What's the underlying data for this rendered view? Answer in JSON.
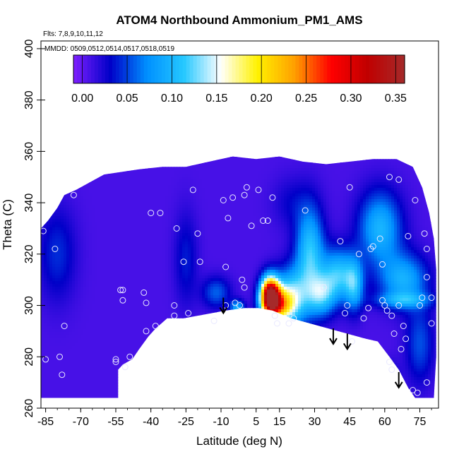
{
  "chart_data": {
    "type": "heatmap",
    "title": "ATOM4 Northbound Ammonium_PM1_AMS",
    "flights_note": "Flts: 7,8,9,10,11,12",
    "dates_note": "MMDD: 0509,0512,0514,0517,0518,0519",
    "xlabel": "Latitude (deg N)",
    "ylabel": "Theta (C)",
    "xlim": [
      -87,
      83
    ],
    "ylim": [
      260,
      403
    ],
    "x_ticks": [
      -85,
      -70,
      -55,
      -40,
      -25,
      -10,
      5,
      15,
      30,
      45,
      60,
      75
    ],
    "y_ticks": [
      260,
      280,
      300,
      320,
      340,
      360,
      380,
      400
    ],
    "colorbar": {
      "range": [
        -0.01,
        0.36
      ],
      "ticks": [
        0.0,
        0.05,
        0.1,
        0.15,
        0.2,
        0.25,
        0.3,
        0.35
      ],
      "tick_labels": [
        "0.00",
        "0.05",
        "0.10",
        "0.15",
        "0.20",
        "0.25",
        "0.30",
        "0.35"
      ],
      "colors": [
        "#7f1fff",
        "#0000c8",
        "#0090ff",
        "#25c8ff",
        "#ffffff",
        "#fff200",
        "#ffa000",
        "#ff0000",
        "#c00000",
        "#a52a2a"
      ]
    },
    "arrows": [
      {
        "lat": -9,
        "theta": 297
      },
      {
        "lat": 38,
        "theta": 285
      },
      {
        "lat": 44,
        "theta": 283
      },
      {
        "lat": 66,
        "theta": 268
      }
    ],
    "observations": [
      [
        -86,
        329
      ],
      [
        -85,
        279
      ],
      [
        -81,
        322
      ],
      [
        -79,
        280
      ],
      [
        -78,
        273
      ],
      [
        -77,
        292
      ],
      [
        -73,
        343
      ],
      [
        -55,
        279
      ],
      [
        -55,
        278
      ],
      [
        -53,
        306
      ],
      [
        -52,
        302
      ],
      [
        -52,
        306
      ],
      [
        -51,
        276
      ],
      [
        -49,
        280
      ],
      [
        -43,
        305
      ],
      [
        -42,
        301
      ],
      [
        -42,
        290
      ],
      [
        -40,
        336
      ],
      [
        -38,
        292
      ],
      [
        -36,
        336
      ],
      [
        -30,
        300
      ],
      [
        -30,
        296
      ],
      [
        -29,
        330
      ],
      [
        -26,
        317
      ],
      [
        -24,
        297
      ],
      [
        -22,
        345
      ],
      [
        -20,
        328
      ],
      [
        -19,
        317
      ],
      [
        -13,
        294
      ],
      [
        -9,
        341
      ],
      [
        -7,
        334
      ],
      [
        -8,
        315
      ],
      [
        -8,
        300
      ],
      [
        -5,
        342
      ],
      [
        -4,
        301
      ],
      [
        -2,
        300
      ],
      [
        -1,
        310
      ],
      [
        0,
        343
      ],
      [
        0,
        307
      ],
      [
        1,
        346
      ],
      [
        3,
        331
      ],
      [
        6,
        345
      ],
      [
        8,
        333
      ],
      [
        10,
        333
      ],
      [
        12,
        342
      ],
      [
        13,
        296
      ],
      [
        14,
        293
      ],
      [
        19,
        293
      ],
      [
        21,
        295
      ],
      [
        26,
        337
      ],
      [
        34,
        307
      ],
      [
        41,
        325
      ],
      [
        43,
        297
      ],
      [
        44,
        300
      ],
      [
        45,
        346
      ],
      [
        46,
        286
      ],
      [
        49,
        320
      ],
      [
        51,
        295
      ],
      [
        53,
        299
      ],
      [
        54,
        322
      ],
      [
        55,
        323
      ],
      [
        58,
        326
      ],
      [
        59,
        316
      ],
      [
        59,
        302
      ],
      [
        60,
        300
      ],
      [
        61,
        298
      ],
      [
        62,
        278
      ],
      [
        62,
        350
      ],
      [
        63,
        296
      ],
      [
        63,
        275
      ],
      [
        64,
        289
      ],
      [
        66,
        300
      ],
      [
        66,
        349
      ],
      [
        67,
        283
      ],
      [
        68,
        292
      ],
      [
        69,
        287
      ],
      [
        70,
        327
      ],
      [
        72,
        267
      ],
      [
        73,
        341
      ],
      [
        74,
        266
      ],
      [
        75,
        300
      ],
      [
        76,
        303
      ],
      [
        77,
        328
      ],
      [
        78,
        311
      ],
      [
        80,
        303
      ],
      [
        80,
        293
      ],
      [
        78,
        270
      ],
      [
        78,
        322
      ]
    ]
  }
}
